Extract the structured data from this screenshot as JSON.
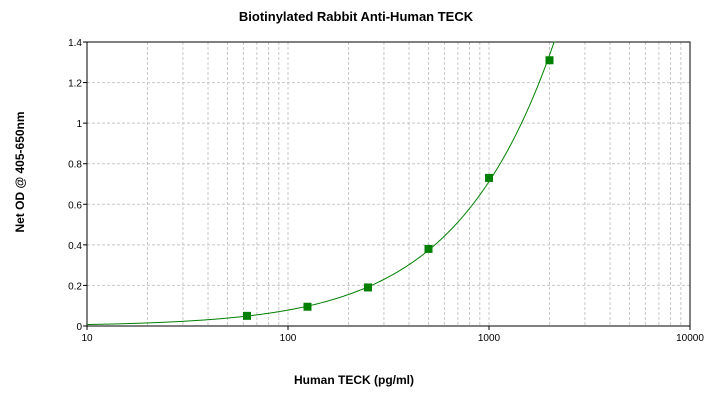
{
  "chart_data": {
    "type": "scatter",
    "title": "Biotinylated Rabbit Anti-Human TECK",
    "xlabel": "Human TECK (pg/ml)",
    "ylabel": "Net OD @ 405-650nm",
    "xscale": "log",
    "xlim": [
      10,
      10000
    ],
    "ylim": [
      0,
      1.4
    ],
    "xticks": [
      "10",
      "100",
      "1000",
      "10000"
    ],
    "yticks": [
      "0",
      "0.2",
      "0.4",
      "0.6",
      "0.8",
      "1",
      "1.2",
      "1.4"
    ],
    "grid": true,
    "fit": "curve",
    "colors": {
      "points": "#008000",
      "curve": "#008000",
      "grid": "#c8c8c8"
    },
    "series": [
      {
        "x": [
          62.5,
          125,
          250,
          500,
          1000,
          2000
        ],
        "y": [
          0.05,
          0.095,
          0.19,
          0.38,
          0.73,
          1.31
        ]
      }
    ]
  }
}
